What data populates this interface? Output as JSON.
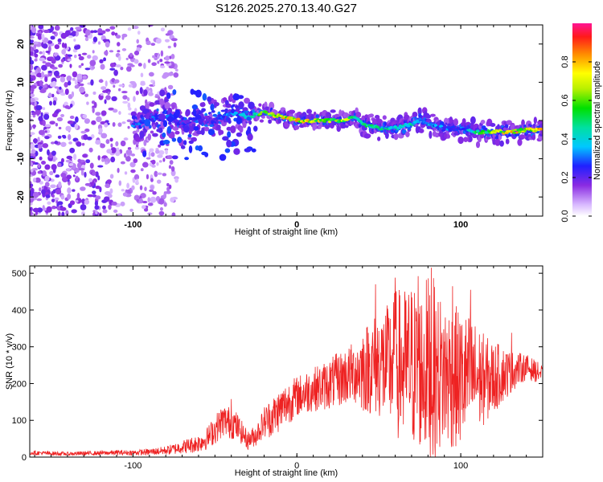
{
  "chart_data": [
    {
      "type": "heatmap",
      "title": "S126.2025.270.13.40.G27",
      "xlabel": "Height of straight line (km)",
      "ylabel": "Frequency (Hz)",
      "xlim": [
        -163,
        150
      ],
      "ylim": [
        -25,
        25
      ],
      "xticks": [
        -100,
        0,
        100
      ],
      "xtick_labels": [
        "-100",
        "0",
        "100"
      ],
      "yticks": [
        -20,
        -10,
        0,
        10,
        20
      ],
      "ytick_labels": [
        "-20",
        "-10",
        "0",
        "10",
        "20"
      ],
      "colorbar": {
        "label": "Normalized spectral amplitude",
        "range": [
          0,
          1
        ],
        "ticks": [
          0.0,
          0.2,
          0.4,
          0.6,
          0.8
        ],
        "tick_labels": [
          "0.0",
          "0.2",
          "0.4",
          "0.6",
          "0.8"
        ],
        "colormap": "rainbow"
      },
      "ridge": {
        "description": "dominant frequency track (Hz) vs height (km)",
        "x": [
          -100,
          -90,
          -80,
          -70,
          -60,
          -50,
          -40,
          -30,
          -20,
          -10,
          0,
          10,
          20,
          30,
          35,
          40,
          50,
          60,
          70,
          75,
          80,
          90,
          100,
          110,
          120,
          130,
          140,
          150
        ],
        "y": [
          -1,
          0,
          1,
          -1,
          1,
          0,
          2,
          1,
          2,
          1,
          0,
          0,
          0,
          0,
          1,
          -1,
          -2,
          -2,
          -1,
          0,
          -1,
          -2,
          -2,
          -3,
          -3,
          -3,
          -2.5,
          -2.5
        ],
        "amplitude": [
          0.35,
          0.3,
          0.35,
          0.3,
          0.3,
          0.25,
          0.4,
          0.45,
          0.7,
          0.85,
          0.85,
          0.8,
          0.8,
          0.8,
          0.7,
          0.55,
          0.5,
          0.5,
          0.5,
          0.45,
          0.45,
          0.35,
          0.35,
          0.55,
          0.75,
          0.85,
          0.9,
          0.9
        ]
      }
    },
    {
      "type": "line",
      "xlabel": "Height of straight line (km)",
      "ylabel": "SNR (10 * v/v)",
      "xlim": [
        -163,
        150
      ],
      "ylim": [
        0,
        520
      ],
      "xticks": [
        -100,
        0,
        100
      ],
      "xtick_labels": [
        "-100",
        "0",
        "100"
      ],
      "yticks": [
        0,
        100,
        200,
        300,
        400,
        500
      ],
      "ytick_labels": [
        "0",
        "100",
        "200",
        "300",
        "400",
        "500"
      ],
      "series": [
        {
          "name": "SNR",
          "color": "#ee2222",
          "x": [
            -163,
            -150,
            -140,
            -130,
            -120,
            -110,
            -100,
            -90,
            -80,
            -75,
            -70,
            -65,
            -60,
            -55,
            -50,
            -45,
            -42,
            -38,
            -35,
            -30,
            -25,
            -22,
            -20,
            -15,
            -10,
            -5,
            0,
            5,
            10,
            15,
            20,
            25,
            30,
            35,
            40,
            45,
            50,
            55,
            60,
            65,
            70,
            75,
            80,
            82,
            85,
            90,
            95,
            100,
            105,
            110,
            115,
            120,
            125,
            130,
            135,
            140,
            145,
            150
          ],
          "center": [
            12,
            10,
            9,
            10,
            11,
            12,
            12,
            14,
            18,
            22,
            28,
            32,
            38,
            50,
            75,
            100,
            95,
            90,
            75,
            45,
            60,
            80,
            95,
            110,
            130,
            150,
            165,
            175,
            185,
            190,
            200,
            210,
            220,
            230,
            240,
            245,
            255,
            245,
            260,
            240,
            250,
            235,
            250,
            240,
            230,
            225,
            220,
            210,
            220,
            215,
            210,
            215,
            225,
            230,
            240,
            245,
            235,
            225
          ],
          "spread": [
            6,
            6,
            5,
            6,
            6,
            7,
            7,
            9,
            12,
            15,
            18,
            22,
            25,
            30,
            40,
            45,
            45,
            42,
            35,
            25,
            30,
            35,
            45,
            55,
            60,
            60,
            55,
            60,
            60,
            65,
            70,
            75,
            80,
            85,
            120,
            130,
            150,
            170,
            200,
            220,
            230,
            220,
            250,
            280,
            220,
            210,
            200,
            190,
            170,
            150,
            120,
            100,
            80,
            60,
            45,
            35,
            30,
            25
          ],
          "peaks": [
            [
              82,
              515
            ],
            [
              60,
              488
            ],
            [
              74,
              492
            ],
            [
              48,
              470
            ],
            [
              95,
              465
            ],
            [
              106,
              455
            ],
            [
              131,
              338
            ],
            [
              -40,
              158
            ]
          ]
        }
      ]
    }
  ]
}
